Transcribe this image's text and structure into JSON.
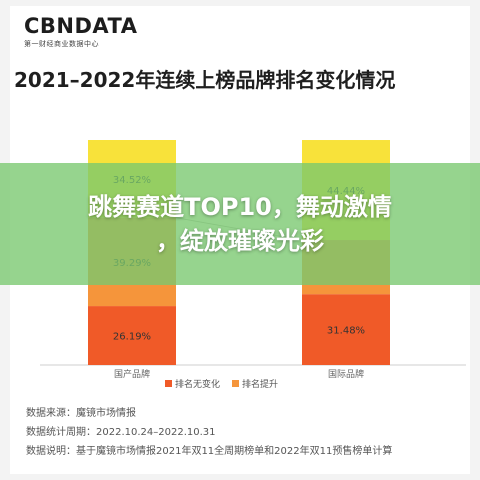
{
  "brand": {
    "name": "CBNDATA",
    "tagline": "第一财经商业数据中心"
  },
  "overlay": {
    "line1": "跳舞赛道TOP10，舞动激情",
    "line2": "，绽放璀璨光彩"
  },
  "notes": [
    "数据来源：魔镜市场情报",
    "数据统计周期：2022.10.24–2022.10.31",
    "数据说明：基于魔镜市场情报2021年双11全周期榜单和2022年双11预售榜单计算"
  ],
  "colors": {
    "unchanged": "#f05a28",
    "improved": "#f5953b",
    "declined": "#f8e23a",
    "overlay": "#78c86e"
  },
  "chart_data": {
    "type": "bar",
    "stacked": true,
    "title": "2021–2022年连续上榜品牌排名变化情况",
    "categories": [
      "国产品牌",
      "国际品牌"
    ],
    "series": [
      {
        "name": "排名无变化",
        "values": [
          26.19,
          31.48
        ],
        "labels": [
          "26.19%",
          "31.48%"
        ],
        "color": "#f05a28"
      },
      {
        "name": "排名提升",
        "values": [
          39.29,
          24.07
        ],
        "labels": [
          "39.29%",
          ""
        ],
        "color": "#f5953b"
      },
      {
        "name": "",
        "values": [
          34.52,
          44.44
        ],
        "labels": [
          "34.52%",
          "44.44%"
        ],
        "color": "#f8e23a"
      }
    ],
    "legend": [
      "排名无变化",
      "排名提升"
    ],
    "ylim": [
      0,
      100
    ],
    "grid": false
  }
}
